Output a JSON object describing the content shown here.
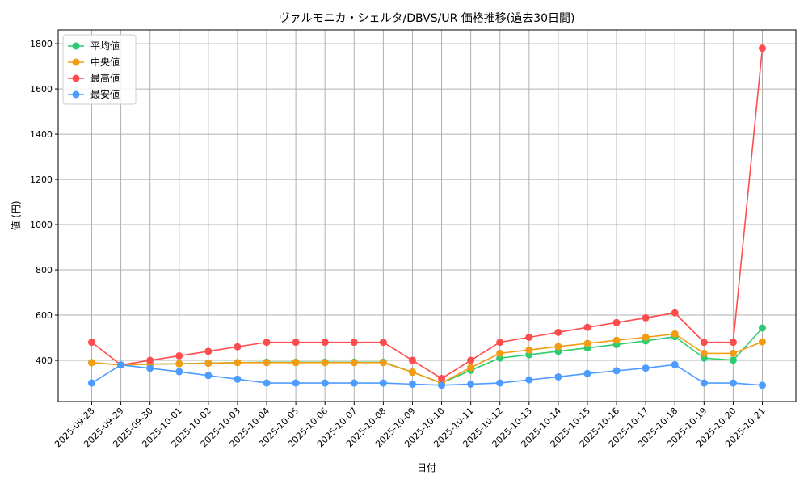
{
  "chart_data": {
    "type": "line",
    "title": "ヴァルモニカ・シェルタ/DBVS/UR 価格推移(過去30日間)",
    "xlabel": "日付",
    "ylabel": "値 (円)",
    "x": [
      "2025-09-28",
      "2025-09-29",
      "2025-09-30",
      "2025-10-01",
      "2025-10-02",
      "2025-10-03",
      "2025-10-04",
      "2025-10-05",
      "2025-10-06",
      "2025-10-07",
      "2025-10-08",
      "2025-10-09",
      "2025-10-10",
      "2025-10-11",
      "2025-10-12",
      "2025-10-13",
      "2025-10-14",
      "2025-10-15",
      "2025-10-16",
      "2025-10-17",
      "2025-10-18",
      "2025-10-19",
      "2025-10-20",
      "2025-10-21"
    ],
    "yticks": [
      400,
      600,
      800,
      1000,
      1200,
      1400,
      1600,
      1800
    ],
    "ylim": [
      218,
      1861
    ],
    "grid": true,
    "legend_position": "top-left",
    "series": [
      {
        "name": "平均値",
        "color": "#2ecc71",
        "values": [
          390,
          380,
          383,
          385,
          388,
          390,
          392,
          392,
          392,
          392,
          392,
          348,
          300,
          356,
          410,
          425,
          440,
          455,
          470,
          486,
          505,
          410,
          401,
          543
        ]
      },
      {
        "name": "中央値",
        "color": "#f39c12",
        "values": [
          390,
          380,
          383,
          385,
          387,
          390,
          390,
          390,
          390,
          390,
          390,
          348,
          300,
          368,
          431,
          446,
          461,
          475,
          489,
          502,
          517,
          431,
          431,
          482
        ]
      },
      {
        "name": "最高値",
        "color": "#ff4d4d",
        "values": [
          480,
          380,
          400,
          420,
          440,
          460,
          480,
          480,
          480,
          480,
          480,
          400,
          320,
          400,
          480,
          502,
          524,
          546,
          567,
          588,
          610,
          480,
          480,
          1780
        ]
      },
      {
        "name": "最安値",
        "color": "#4d9bff",
        "values": [
          300,
          380,
          365,
          350,
          333,
          317,
          300,
          300,
          300,
          300,
          300,
          295,
          290,
          295,
          300,
          314,
          327,
          342,
          354,
          366,
          381,
          300,
          300,
          290
        ]
      }
    ]
  }
}
